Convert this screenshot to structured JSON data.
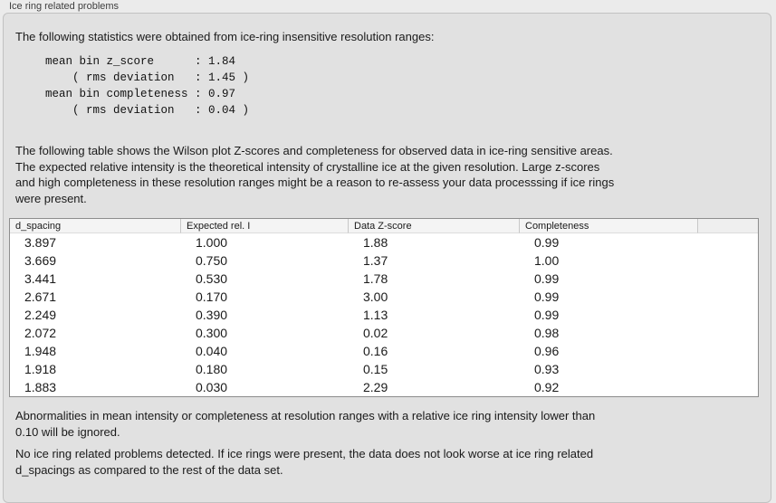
{
  "panel": {
    "title": "Ice ring related problems"
  },
  "intro": {
    "text": "The following statistics were obtained from ice-ring insensitive resolution ranges:",
    "stats_block": "mean bin z_score      : 1.84\n    ( rms deviation   : 1.45 )\nmean bin completeness : 0.97\n    ( rms deviation   : 0.04 )"
  },
  "description": "The following table shows the Wilson plot Z-scores and completeness for observed data in ice-ring sensitive areas.\nThe expected relative intensity is the theoretical intensity of crystalline ice at the given resolution. Large z-scores\nand high completeness in these resolution ranges might be a reason to re-assess your data processsing if ice rings\nwere present.",
  "table": {
    "columns": [
      "d_spacing",
      "Expected rel. I",
      "Data Z-score",
      "Completeness"
    ],
    "rows": [
      [
        "3.897",
        "1.000",
        "1.88",
        "0.99"
      ],
      [
        "3.669",
        "0.750",
        "1.37",
        "1.00"
      ],
      [
        "3.441",
        "0.530",
        "1.78",
        "0.99"
      ],
      [
        "2.671",
        "0.170",
        "3.00",
        "0.99"
      ],
      [
        "2.249",
        "0.390",
        "1.13",
        "0.99"
      ],
      [
        "2.072",
        "0.300",
        "0.02",
        "0.98"
      ],
      [
        "1.948",
        "0.040",
        "0.16",
        "0.96"
      ],
      [
        "1.918",
        "0.180",
        "0.15",
        "0.93"
      ],
      [
        "1.883",
        "0.030",
        "2.29",
        "0.92"
      ]
    ]
  },
  "notes": {
    "ignore_note": "Abnormalities in mean intensity or completeness at resolution ranges with a relative ice ring intensity lower than\n0.10 will be ignored.",
    "conclusion": "No ice ring related problems detected. If ice rings were present, the data does not look worse at ice ring related\nd_spacings as compared to the rest of the data set."
  },
  "colors": {
    "page_bg": "#ebebeb",
    "panel_bg": "#e1e1e1",
    "panel_border": "#c2c2c2",
    "table_bg": "#ffffff",
    "table_border": "#8d8d8d",
    "table_header_bg": "#f4f4f4",
    "text": "#1a1a1a"
  }
}
